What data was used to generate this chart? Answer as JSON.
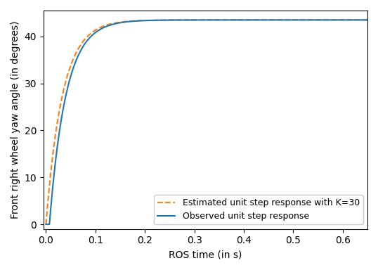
{
  "title": "",
  "xlabel": "ROS time (in s)",
  "ylabel": "Front right wheel yaw angle (in degrees)",
  "xlim": [
    -0.005,
    0.65
  ],
  "ylim": [
    -1.0,
    45.5
  ],
  "yticks": [
    0,
    10,
    20,
    30,
    40
  ],
  "xticks": [
    0.0,
    0.1,
    0.2,
    0.3,
    0.4,
    0.5,
    0.6
  ],
  "steady_state": 43.5,
  "K_observed": 30,
  "delay_observed": 0.007,
  "K_estimated": 30,
  "delay_estimated": 0.0,
  "color_observed": "#1f77b4",
  "color_estimated": "#ff7f0e",
  "legend_observed": "Observed unit step response",
  "legend_estimated": "Estimated unit step response with K=30",
  "figsize": [
    5.38,
    3.84
  ],
  "dpi": 100
}
